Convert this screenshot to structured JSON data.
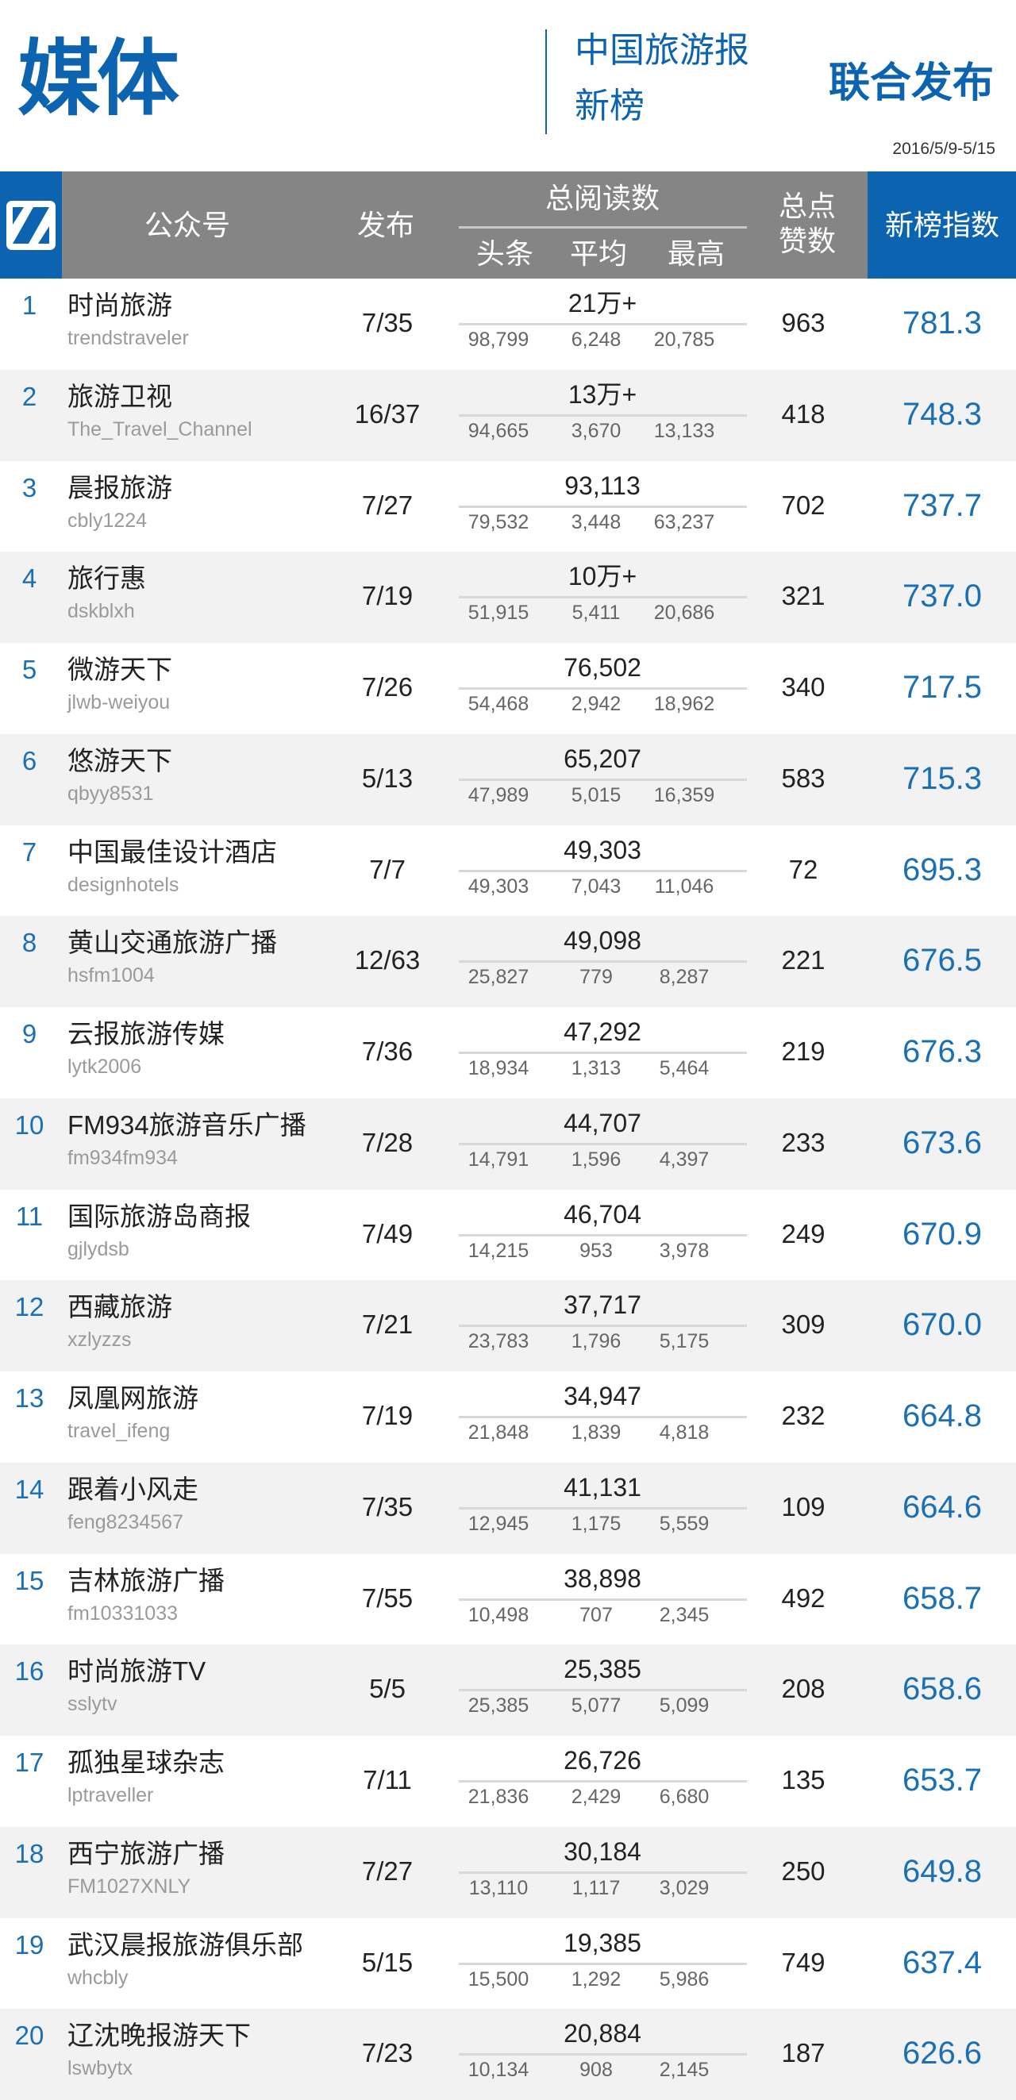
{
  "title": "媒体",
  "publisher_line1": "中国旅游报",
  "publisher_line2": "新榜",
  "joint_release": "联合发布",
  "date_range": "2016/5/9-5/15",
  "colors": {
    "brand": "#0c64b0",
    "header_gray": "#858585",
    "row_alt": "#f2f2f2",
    "index_text": "#1a6fb5"
  },
  "logo_icon": "newrank-n-logo",
  "columns": {
    "account": "公众号",
    "posts": "发布",
    "total_reads": "总阅读数",
    "headline": "头条",
    "average": "平均",
    "max": "最高",
    "likes_line1": "总点",
    "likes_line2": "赞数",
    "index": "新榜指数"
  },
  "rows": [
    {
      "rank": "1",
      "name": "时尚旅游",
      "handle": "trendstraveler",
      "posts": "7/35",
      "total": "21万+",
      "headline": "98,799",
      "average": "6,248",
      "max": "20,785",
      "likes": "963",
      "index": "781.3"
    },
    {
      "rank": "2",
      "name": "旅游卫视",
      "handle": "The_Travel_Channel",
      "posts": "16/37",
      "total": "13万+",
      "headline": "94,665",
      "average": "3,670",
      "max": "13,133",
      "likes": "418",
      "index": "748.3"
    },
    {
      "rank": "3",
      "name": "晨报旅游",
      "handle": "cbly1224",
      "posts": "7/27",
      "total": "93,113",
      "headline": "79,532",
      "average": "3,448",
      "max": "63,237",
      "likes": "702",
      "index": "737.7"
    },
    {
      "rank": "4",
      "name": "旅行惠",
      "handle": "dskblxh",
      "posts": "7/19",
      "total": "10万+",
      "headline": "51,915",
      "average": "5,411",
      "max": "20,686",
      "likes": "321",
      "index": "737.0"
    },
    {
      "rank": "5",
      "name": "微游天下",
      "handle": "jlwb-weiyou",
      "posts": "7/26",
      "total": "76,502",
      "headline": "54,468",
      "average": "2,942",
      "max": "18,962",
      "likes": "340",
      "index": "717.5"
    },
    {
      "rank": "6",
      "name": "悠游天下",
      "handle": "qbyy8531",
      "posts": "5/13",
      "total": "65,207",
      "headline": "47,989",
      "average": "5,015",
      "max": "16,359",
      "likes": "583",
      "index": "715.3"
    },
    {
      "rank": "7",
      "name": "中国最佳设计酒店",
      "handle": "designhotels",
      "posts": "7/7",
      "total": "49,303",
      "headline": "49,303",
      "average": "7,043",
      "max": "11,046",
      "likes": "72",
      "index": "695.3"
    },
    {
      "rank": "8",
      "name": "黄山交通旅游广播",
      "handle": "hsfm1004",
      "posts": "12/63",
      "total": "49,098",
      "headline": "25,827",
      "average": "779",
      "max": "8,287",
      "likes": "221",
      "index": "676.5"
    },
    {
      "rank": "9",
      "name": "云报旅游传媒",
      "handle": "lytk2006",
      "posts": "7/36",
      "total": "47,292",
      "headline": "18,934",
      "average": "1,313",
      "max": "5,464",
      "likes": "219",
      "index": "676.3"
    },
    {
      "rank": "10",
      "name": "FM934旅游音乐广播",
      "handle": "fm934fm934",
      "posts": "7/28",
      "total": "44,707",
      "headline": "14,791",
      "average": "1,596",
      "max": "4,397",
      "likes": "233",
      "index": "673.6"
    },
    {
      "rank": "11",
      "name": "国际旅游岛商报",
      "handle": "gjlydsb",
      "posts": "7/49",
      "total": "46,704",
      "headline": "14,215",
      "average": "953",
      "max": "3,978",
      "likes": "249",
      "index": "670.9"
    },
    {
      "rank": "12",
      "name": "西藏旅游",
      "handle": "xzlyzzs",
      "posts": "7/21",
      "total": "37,717",
      "headline": "23,783",
      "average": "1,796",
      "max": "5,175",
      "likes": "309",
      "index": "670.0"
    },
    {
      "rank": "13",
      "name": "凤凰网旅游",
      "handle": "travel_ifeng",
      "posts": "7/19",
      "total": "34,947",
      "headline": "21,848",
      "average": "1,839",
      "max": "4,818",
      "likes": "232",
      "index": "664.8"
    },
    {
      "rank": "14",
      "name": "跟着小风走",
      "handle": "feng8234567",
      "posts": "7/35",
      "total": "41,131",
      "headline": "12,945",
      "average": "1,175",
      "max": "5,559",
      "likes": "109",
      "index": "664.6"
    },
    {
      "rank": "15",
      "name": "吉林旅游广播",
      "handle": "fm10331033",
      "posts": "7/55",
      "total": "38,898",
      "headline": "10,498",
      "average": "707",
      "max": "2,345",
      "likes": "492",
      "index": "658.7"
    },
    {
      "rank": "16",
      "name": "时尚旅游TV",
      "handle": "sslytv",
      "posts": "5/5",
      "total": "25,385",
      "headline": "25,385",
      "average": "5,077",
      "max": "5,099",
      "likes": "208",
      "index": "658.6"
    },
    {
      "rank": "17",
      "name": "孤独星球杂志",
      "handle": "lptraveller",
      "posts": "7/11",
      "total": "26,726",
      "headline": "21,836",
      "average": "2,429",
      "max": "6,680",
      "likes": "135",
      "index": "653.7"
    },
    {
      "rank": "18",
      "name": "西宁旅游广播",
      "handle": "FM1027XNLY",
      "posts": "7/27",
      "total": "30,184",
      "headline": "13,110",
      "average": "1,117",
      "max": "3,029",
      "likes": "250",
      "index": "649.8"
    },
    {
      "rank": "19",
      "name": "武汉晨报旅游俱乐部",
      "handle": "whcbly",
      "posts": "5/15",
      "total": "19,385",
      "headline": "15,500",
      "average": "1,292",
      "max": "5,986",
      "likes": "749",
      "index": "637.4"
    },
    {
      "rank": "20",
      "name": "辽沈晚报游天下",
      "handle": "lswbytx",
      "posts": "7/23",
      "total": "20,884",
      "headline": "10,134",
      "average": "908",
      "max": "2,145",
      "likes": "187",
      "index": "626.6"
    }
  ]
}
